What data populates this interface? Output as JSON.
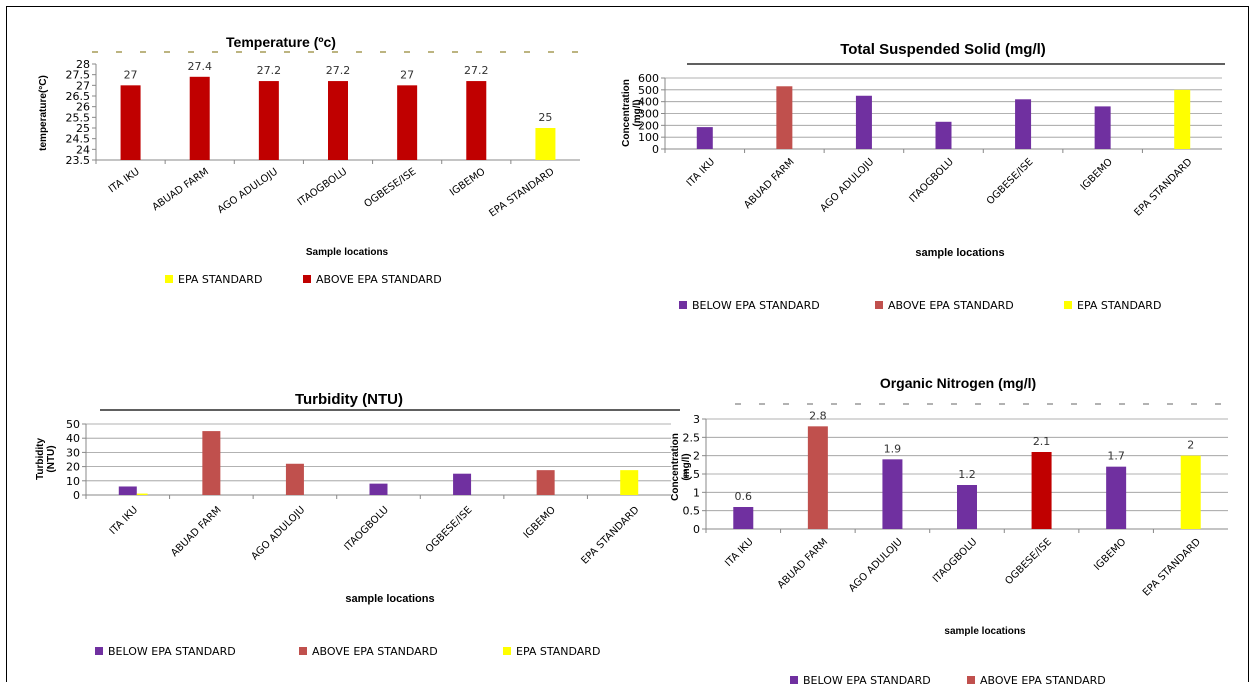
{
  "colors": {
    "below": "#7030A0",
    "above_light": "#C0504D",
    "above_dark": "#C00000",
    "epa": "#FFFF00"
  },
  "chart_data": [
    {
      "id": "temperature",
      "type": "bar",
      "title": "Temperature (ºc)",
      "xlabel": "Sample locations",
      "ylabel": "temperature(°C)",
      "categories": [
        "ITA IKU",
        "ABUAD FARM",
        "AGO ADULOJU",
        "ITAOGBOLU",
        "OGBESE/ISE",
        "IGBEMO",
        "EPA STANDARD"
      ],
      "values": [
        27,
        27.4,
        27.2,
        27.2,
        27,
        27.2,
        25
      ],
      "data_labels": [
        "27",
        "27.4",
        "27.2",
        "27.2",
        "27",
        "27.2",
        "25"
      ],
      "bar_classes": [
        "above_dark",
        "above_dark",
        "above_dark",
        "above_dark",
        "above_dark",
        "above_dark",
        "epa"
      ],
      "ylim": [
        23.5,
        28
      ],
      "yticks": [
        "23.5",
        "24",
        "24.5",
        "25",
        "25.5",
        "26",
        "26.5",
        "27",
        "27.5",
        "28"
      ],
      "grid": false,
      "legend": [
        {
          "label": "EPA STANDARD",
          "color_key": "epa"
        },
        {
          "label": "ABOVE EPA STANDARD",
          "color_key": "above_dark"
        }
      ]
    },
    {
      "id": "tss",
      "type": "bar",
      "title": "Total Suspended Solid (mg/l)",
      "xlabel": "sample locations",
      "ylabel": "Concentration (mg/l)",
      "categories": [
        "ITA IKU",
        "ABUAD FARM",
        "AGO ADULOJU",
        "ITAOGBOLU",
        "OGBESE/ISE",
        "IGBEMO",
        "EPA STANDARD"
      ],
      "values": [
        185,
        530,
        450,
        230,
        420,
        360,
        500
      ],
      "bar_classes": [
        "below",
        "above_light",
        "below",
        "below",
        "below",
        "below",
        "epa"
      ],
      "ylim": [
        0,
        600
      ],
      "yticks": [
        "0",
        "100",
        "200",
        "300",
        "400",
        "500",
        "600"
      ],
      "grid": true,
      "legend": [
        {
          "label": "BELOW EPA STANDARD",
          "color_key": "below"
        },
        {
          "label": "ABOVE EPA STANDARD",
          "color_key": "above_light"
        },
        {
          "label": "EPA STANDARD",
          "color_key": "epa"
        }
      ]
    },
    {
      "id": "turbidity",
      "type": "bar",
      "title": "Turbidity (NTU)",
      "xlabel": "sample locations",
      "ylabel": "Turbidity (NTU)",
      "categories": [
        "ITA IKU",
        "ABUAD FARM",
        "AGO ADULOJU",
        "ITAOGBOLU",
        "OGBESE/ISE",
        "IGBEMO",
        "EPA STANDARD"
      ],
      "values": [
        6,
        45,
        22,
        8,
        15,
        17.5,
        17.5
      ],
      "extra_values": [
        1,
        null,
        null,
        null,
        null,
        null,
        null
      ],
      "bar_classes": [
        "below",
        "above_light",
        "above_light",
        "below",
        "below",
        "above_light",
        "epa"
      ],
      "ylim": [
        0,
        50
      ],
      "yticks": [
        "0",
        "10",
        "20",
        "30",
        "40",
        "50"
      ],
      "grid": true,
      "legend": [
        {
          "label": "BELOW EPA STANDARD",
          "color_key": "below"
        },
        {
          "label": "ABOVE EPA STANDARD",
          "color_key": "above_light"
        },
        {
          "label": "EPA STANDARD",
          "color_key": "epa"
        }
      ]
    },
    {
      "id": "orgn",
      "type": "bar",
      "title": "Organic Nitrogen (mg/l)",
      "xlabel": "sample locations",
      "ylabel": "Concentration (mg/l)",
      "categories": [
        "ITA IKU",
        "ABUAD FARM",
        "AGO ADULOJU",
        "ITAOGBOLU",
        "OGBESE/ISE",
        "IGBEMO",
        "EPA STANDARD"
      ],
      "values": [
        0.6,
        2.8,
        1.9,
        1.2,
        2.1,
        1.7,
        2
      ],
      "data_labels": [
        "0.6",
        "2.8",
        "1.9",
        "1.2",
        "2.1",
        "1.7",
        "2"
      ],
      "bar_classes": [
        "below",
        "above_light",
        "below",
        "below",
        "above_dark",
        "below",
        "epa"
      ],
      "ylim": [
        0,
        3
      ],
      "yticks": [
        "0",
        "0.5",
        "1",
        "1.5",
        "2",
        "2.5",
        "3"
      ],
      "grid": true,
      "legend": [
        {
          "label": "BELOW EPA STANDARD",
          "color_key": "below"
        },
        {
          "label": "ABOVE EPA STANDARD",
          "color_key": "above_light"
        }
      ]
    }
  ]
}
